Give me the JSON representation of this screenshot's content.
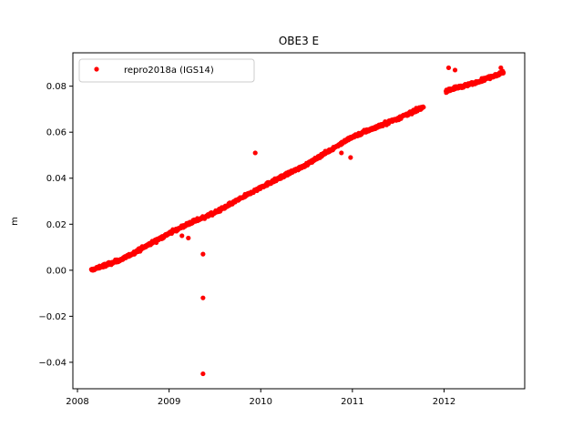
{
  "chart_data": {
    "type": "scatter",
    "title": "OBE3 E",
    "xlabel": "",
    "ylabel": "m",
    "xlim": [
      2007.95,
      2012.88
    ],
    "ylim": [
      -0.0515,
      0.0945
    ],
    "x_ticks": [
      2008,
      2009,
      2010,
      2011,
      2012
    ],
    "y_ticks": [
      -0.04,
      -0.02,
      0.0,
      0.02,
      0.04,
      0.06,
      0.08
    ],
    "x_tick_labels": [
      "2008",
      "2009",
      "2010",
      "2011",
      "2012"
    ],
    "y_tick_labels": [
      "−0.04",
      "−0.02",
      "0.00",
      "0.02",
      "0.04",
      "0.06",
      "0.08"
    ],
    "grid": false,
    "legend_position": "top-left",
    "series": [
      {
        "name": "repro2018a (IGS14)",
        "color": "#ff0000",
        "marker": "circle",
        "trend_segments": [
          {
            "x": [
              2008.15,
              2008.5,
              2009.0,
              2009.2,
              2009.5,
              2010.0,
              2010.5,
              2011.0,
              2011.5,
              2011.78
            ],
            "y": [
              0.0,
              0.005,
              0.016,
              0.02,
              0.025,
              0.036,
              0.046,
              0.058,
              0.066,
              0.071
            ]
          },
          {
            "x": [
              2012.02,
              2012.3,
              2012.65
            ],
            "y": [
              0.078,
              0.081,
              0.086
            ]
          }
        ],
        "outliers": [
          {
            "x": 2009.37,
            "y": 0.007
          },
          {
            "x": 2009.37,
            "y": -0.012
          },
          {
            "x": 2009.37,
            "y": -0.045
          },
          {
            "x": 2009.94,
            "y": 0.051
          },
          {
            "x": 2012.05,
            "y": 0.088
          },
          {
            "x": 2012.12,
            "y": 0.087
          },
          {
            "x": 2012.62,
            "y": 0.088
          },
          {
            "x": 2010.98,
            "y": 0.049
          },
          {
            "x": 2010.88,
            "y": 0.051
          },
          {
            "x": 2009.14,
            "y": 0.015
          },
          {
            "x": 2009.21,
            "y": 0.014
          }
        ]
      }
    ]
  }
}
